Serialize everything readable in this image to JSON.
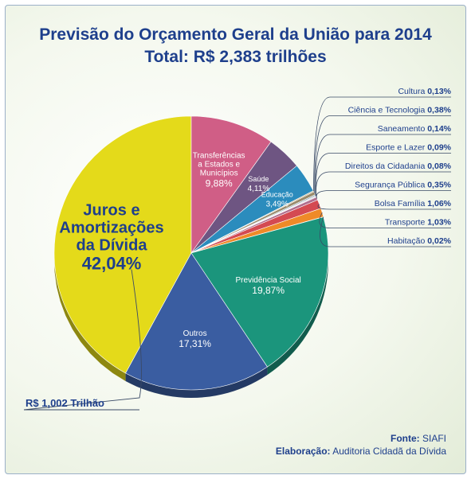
{
  "chart_data": {
    "type": "pie",
    "title": "Previsão do Orçamento Geral da União para 2014",
    "subtitle": "Total: R$ 2,383 trilhões",
    "slices": [
      {
        "label": "Juros e Amortizações da Dívida",
        "value": 42.04,
        "value_label": "42,04%",
        "color": "#e4da1a"
      },
      {
        "label": "Transferências a Estados e Municípios",
        "value": 9.88,
        "value_label": "9,88%",
        "color": "#d05e86"
      },
      {
        "label": "Saúde",
        "value": 4.11,
        "value_label": "4,11%",
        "color": "#6e5582"
      },
      {
        "label": "Educação",
        "value": 3.49,
        "value_label": "3,49%",
        "color": "#2b8cbd"
      },
      {
        "label": "Cultura",
        "value": 0.13,
        "value_label": "0,13%",
        "color": "#c7b58a"
      },
      {
        "label": "Ciência e Tecnologia",
        "value": 0.38,
        "value_label": "0,38%",
        "color": "#9a8a6a"
      },
      {
        "label": "Saneamento",
        "value": 0.14,
        "value_label": "0,14%",
        "color": "#7fa1b0"
      },
      {
        "label": "Esporte e Lazer",
        "value": 0.09,
        "value_label": "0,09%",
        "color": "#c8a0b4"
      },
      {
        "label": "Direitos da Cidadania",
        "value": 0.08,
        "value_label": "0,08%",
        "color": "#a0b0d0"
      },
      {
        "label": "Segurança Pública",
        "value": 0.35,
        "value_label": "0,35%",
        "color": "#b06e8e"
      },
      {
        "label": "Bolsa Família",
        "value": 1.06,
        "value_label": "1,06%",
        "color": "#d44a52"
      },
      {
        "label": "Transporte",
        "value": 1.03,
        "value_label": "1,03%",
        "color": "#ef8a28"
      },
      {
        "label": "Habitação",
        "value": 0.02,
        "value_label": "0,02%",
        "color": "#9a9a9a"
      },
      {
        "label": "Previdência Social",
        "value": 19.87,
        "value_label": "19,87%",
        "color": "#1b957c"
      },
      {
        "label": "Outros",
        "value": 17.31,
        "value_label": "17,31%",
        "color": "#3a5da1"
      }
    ],
    "callout": "R$ 1,002 Trilhão"
  },
  "footer": {
    "source_label": "Fonte:",
    "source_value": "SIAFI",
    "author_label": "Elaboração:",
    "author_value": "Auditoria Cidadã da Dívida"
  }
}
